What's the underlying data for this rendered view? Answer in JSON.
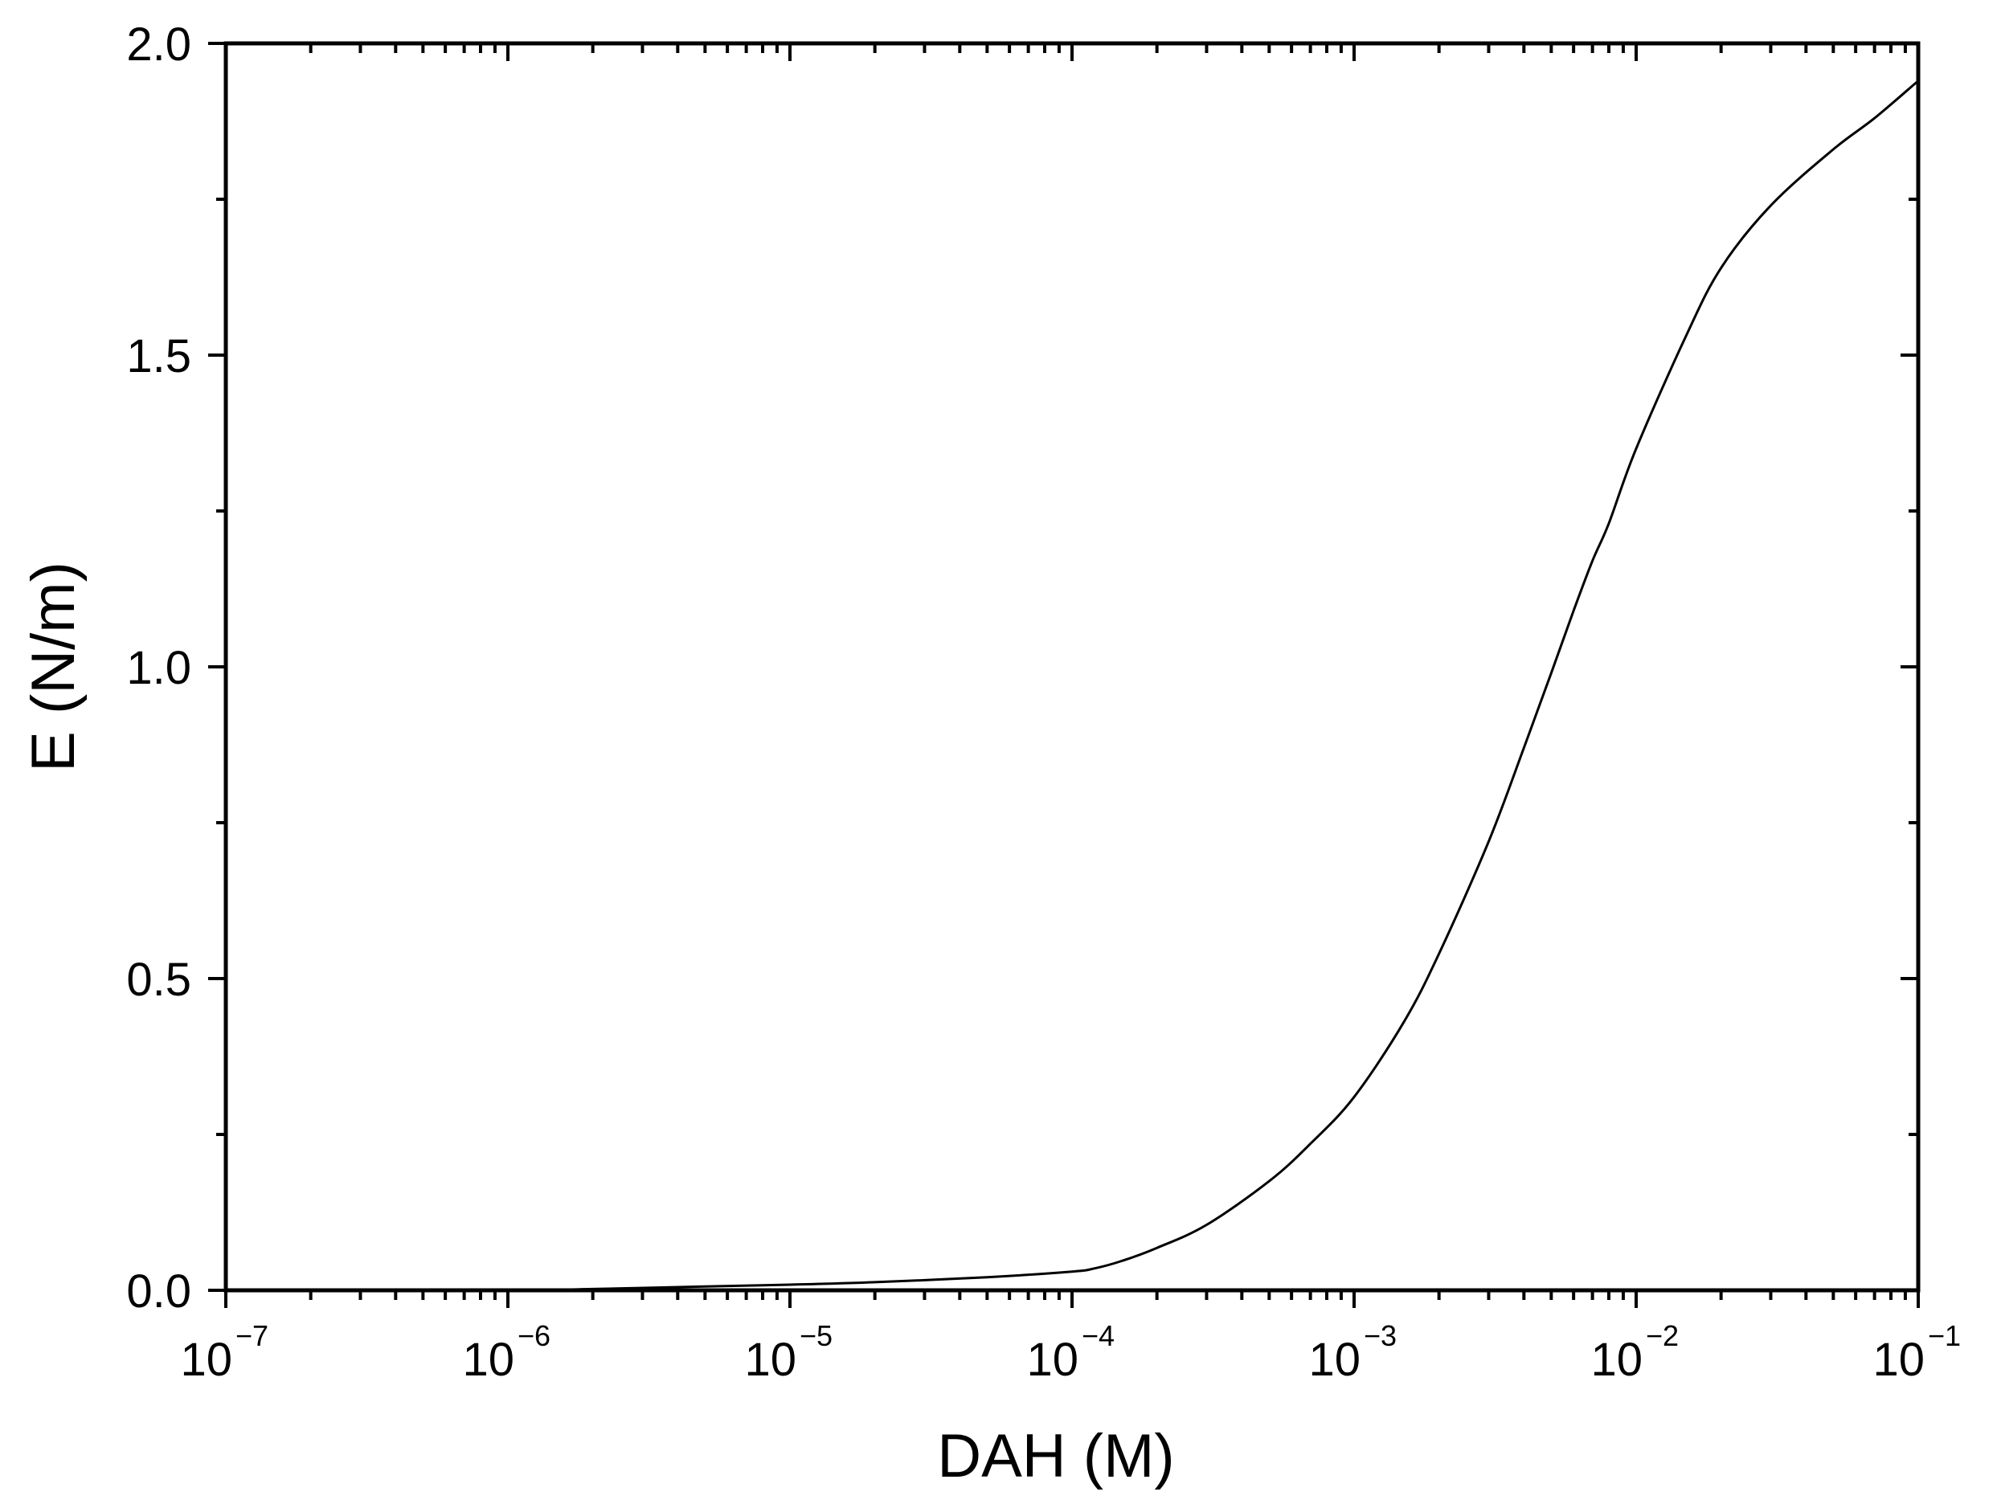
{
  "chart_data": {
    "type": "line",
    "title": "",
    "xlabel": "DAH (M)",
    "ylabel": "E (N/m)",
    "x_scale": "log",
    "xlim": [
      1e-07,
      0.1
    ],
    "ylim": [
      0.0,
      2.0
    ],
    "grid": false,
    "legend": "none",
    "x_tick_labels": [
      {
        "base": "10",
        "exp": "−7",
        "value": 1e-07
      },
      {
        "base": "10",
        "exp": "−6",
        "value": 1e-06
      },
      {
        "base": "10",
        "exp": "−5",
        "value": 1e-05
      },
      {
        "base": "10",
        "exp": "−4",
        "value": 0.0001
      },
      {
        "base": "10",
        "exp": "−3",
        "value": 0.001
      },
      {
        "base": "10",
        "exp": "−2",
        "value": 0.01
      },
      {
        "base": "10",
        "exp": "−1",
        "value": 0.1
      }
    ],
    "y_tick_labels": [
      {
        "label": "0.0",
        "value": 0.0
      },
      {
        "label": "0.5",
        "value": 0.5
      },
      {
        "label": "1.0",
        "value": 1.0
      },
      {
        "label": "1.5",
        "value": 1.5
      },
      {
        "label": "2.0",
        "value": 2.0
      }
    ],
    "y_minor_step": 0.25,
    "series": [
      {
        "color": "#000000",
        "x": [
          1e-07,
          1e-06,
          2e-06,
          5e-06,
          1e-05,
          2e-05,
          5e-05,
          0.0001,
          0.00012,
          0.00015,
          0.0002,
          0.0003,
          0.0005,
          0.0007,
          0.001,
          0.0015,
          0.002,
          0.003,
          0.004,
          0.005,
          0.006,
          0.007,
          0.008,
          0.01,
          0.015,
          0.02,
          0.03,
          0.05,
          0.07,
          0.1
        ],
        "y": [
          0.0,
          0.0,
          0.002,
          0.006,
          0.009,
          0.013,
          0.021,
          0.03,
          0.035,
          0.047,
          0.068,
          0.105,
          0.175,
          0.235,
          0.31,
          0.43,
          0.54,
          0.72,
          0.87,
          0.99,
          1.09,
          1.17,
          1.23,
          1.35,
          1.53,
          1.64,
          1.74,
          1.83,
          1.88,
          1.94
        ]
      }
    ]
  }
}
